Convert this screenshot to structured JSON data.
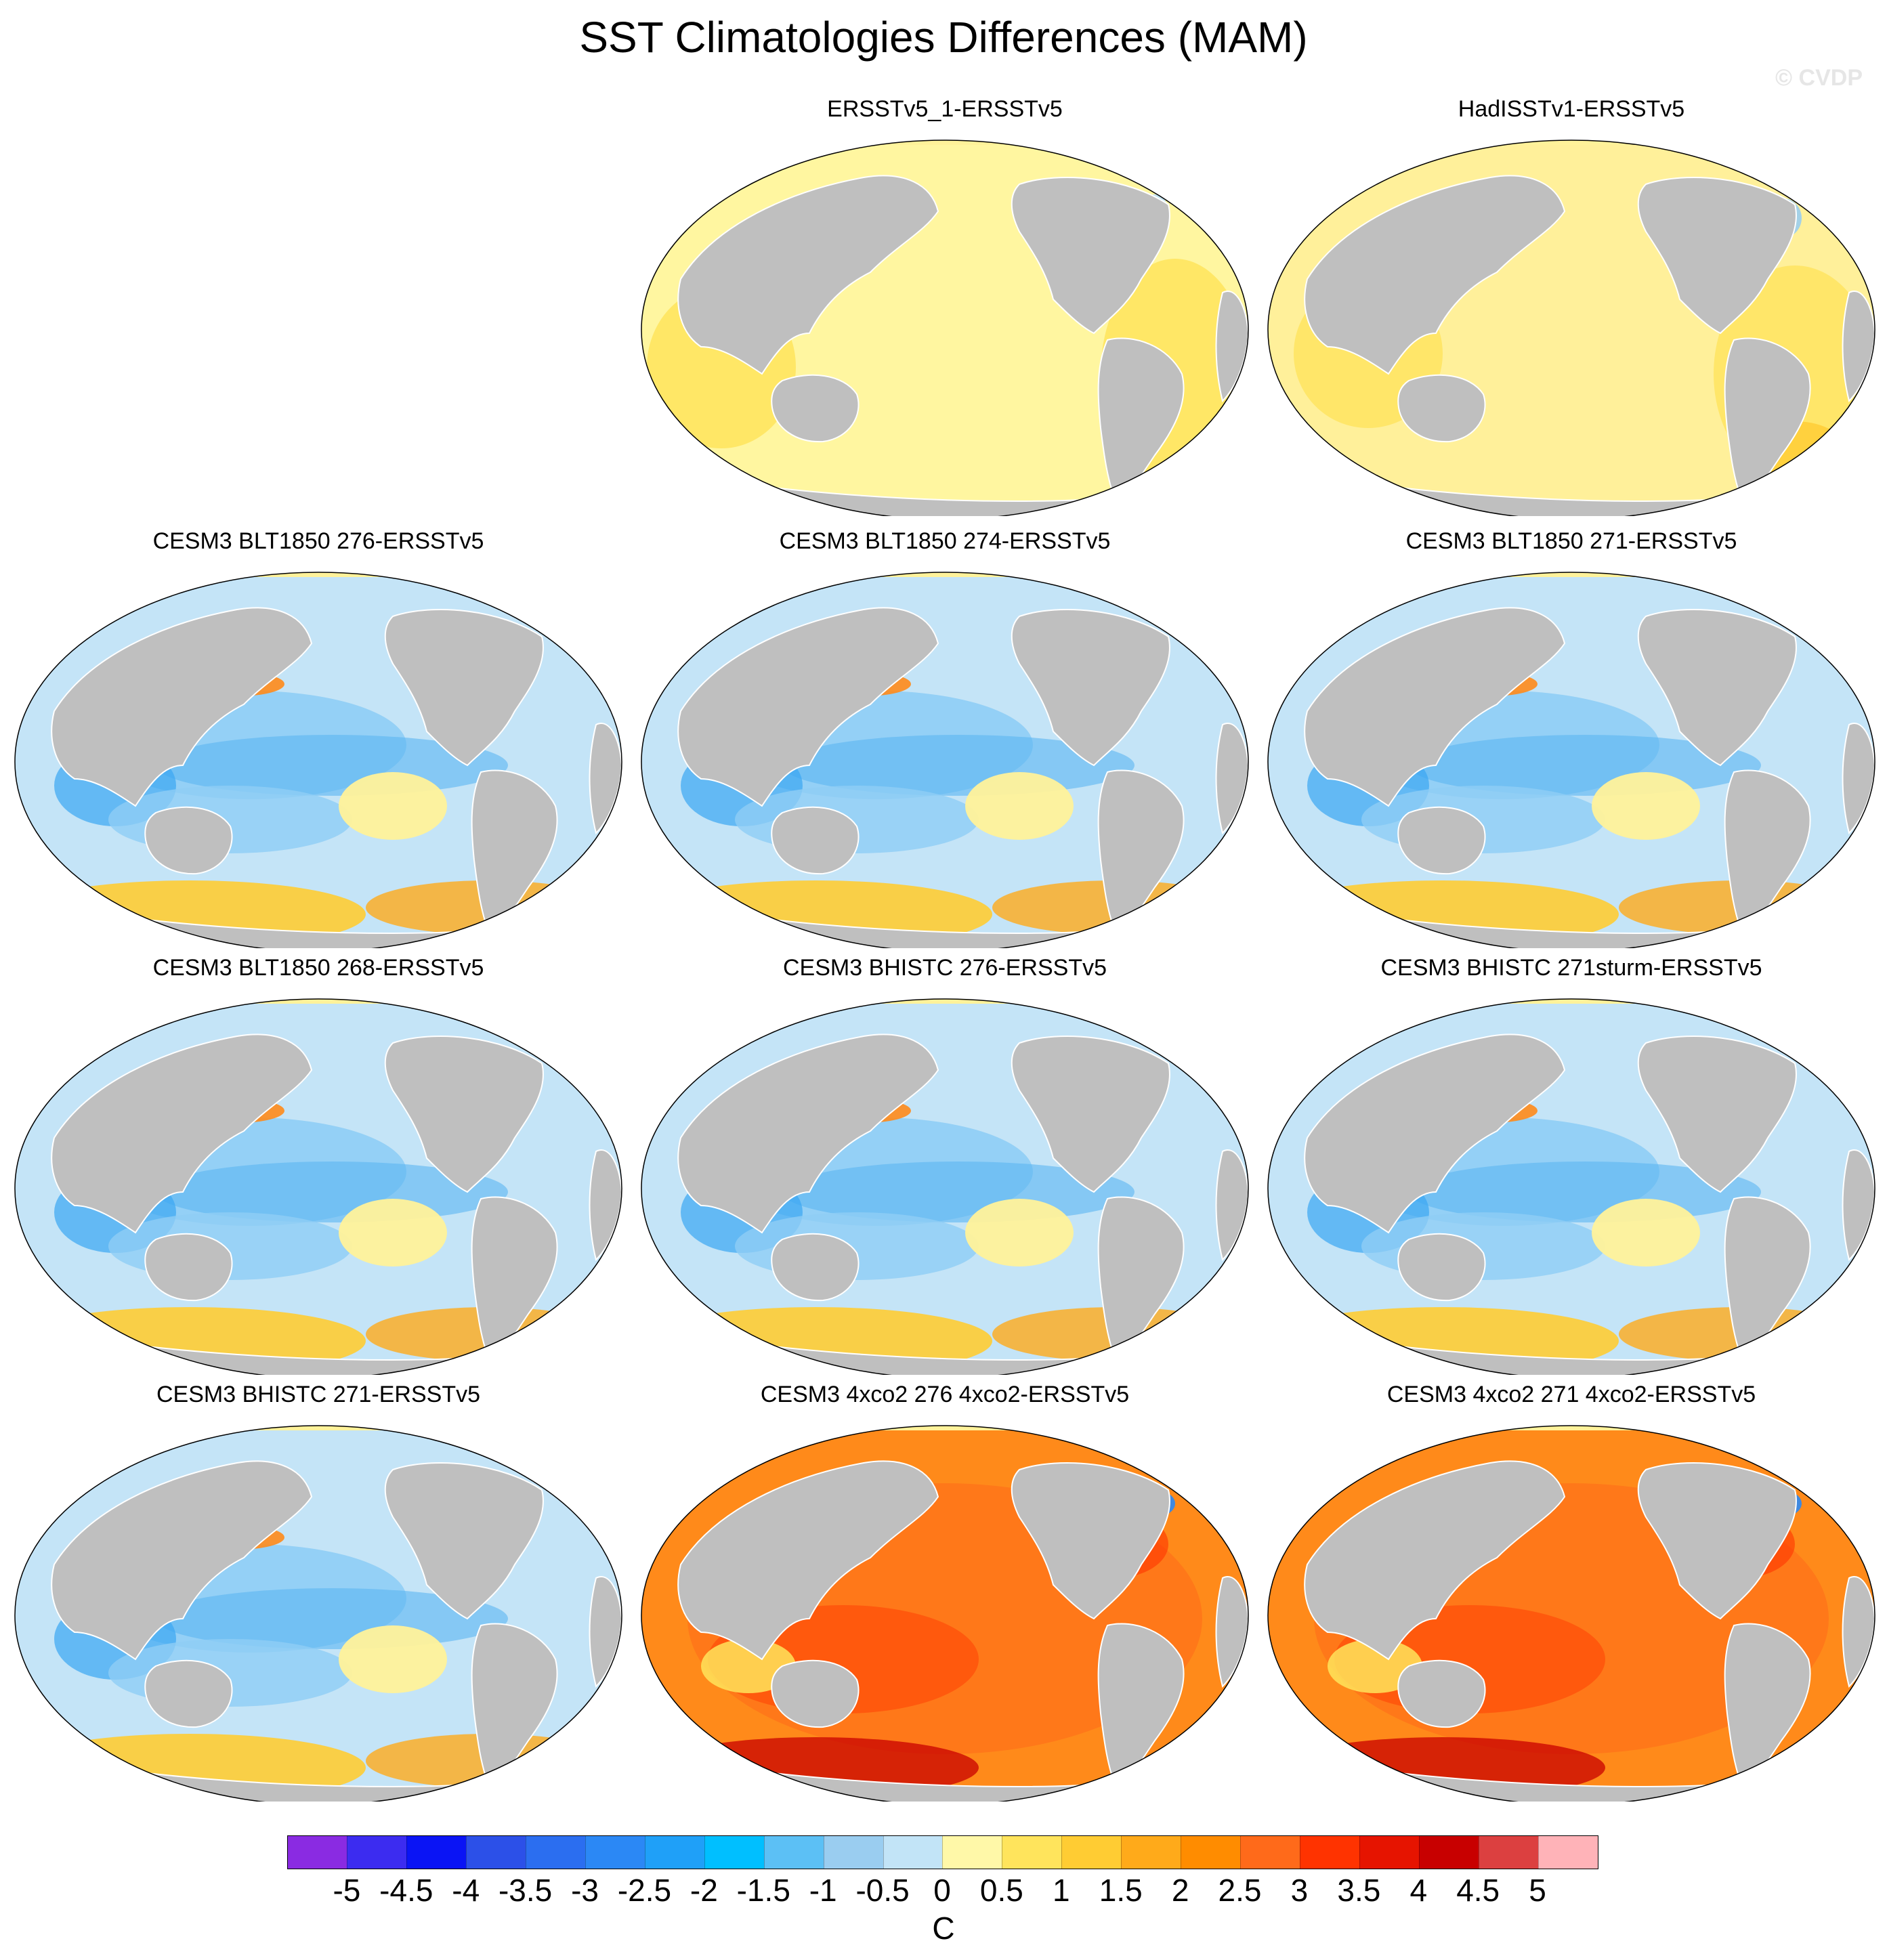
{
  "title": "SST Climatologies Differences (MAM)",
  "watermark": "© CVDP",
  "panels": [
    {
      "label": "ERSSTv5_1-ERSSTv5",
      "scheme": "obs1"
    },
    {
      "label": "HadISSTv1-ERSSTv5",
      "scheme": "obs2"
    },
    {
      "label": "CESM3 BLT1850 276-ERSSTv5",
      "scheme": "model"
    },
    {
      "label": "CESM3 BLT1850 274-ERSSTv5",
      "scheme": "model"
    },
    {
      "label": "CESM3 BLT1850 271-ERSSTv5",
      "scheme": "model"
    },
    {
      "label": "CESM3 BLT1850 268-ERSSTv5",
      "scheme": "model"
    },
    {
      "label": "CESM3 BHISTC 276-ERSSTv5",
      "scheme": "model"
    },
    {
      "label": "CESM3 BHISTC 271sturm-ERSSTv5",
      "scheme": "model"
    },
    {
      "label": "CESM3 BHISTC 271-ERSSTv5",
      "scheme": "model"
    },
    {
      "label": "CESM3 4xco2 276 4xco2-ERSSTv5",
      "scheme": "warm"
    },
    {
      "label": "CESM3 4xco2 271 4xco2-ERSSTv5",
      "scheme": "warm"
    }
  ],
  "colorbar": {
    "colors": [
      "#8a2be2",
      "#3c2cf0",
      "#0a14f5",
      "#2c50e8",
      "#2b6ef0",
      "#2b88f5",
      "#1fa0f8",
      "#00bfff",
      "#5cc0f5",
      "#9acdf0",
      "#c2e4f7",
      "#fff8a8",
      "#ffe45c",
      "#ffcc33",
      "#ffaa1a",
      "#ff8c00",
      "#ff6a1a",
      "#ff3300",
      "#e61400",
      "#c80000",
      "#dc4040",
      "#ffb3b8"
    ],
    "labels": [
      "-5",
      "-4.5",
      "-4",
      "-3.5",
      "-3",
      "-2.5",
      "-2",
      "-1.5",
      "-1",
      "-0.5",
      "0",
      "0.5",
      "1",
      "1.5",
      "2",
      "2.5",
      "3",
      "3.5",
      "4",
      "4.5",
      "5"
    ],
    "units": "C"
  },
  "land_color": "#bfbfbf",
  "ocean_base": {
    "obs1": "#fff6a0",
    "obs2": "#fff09a",
    "model": "#c4e4f7",
    "warm": "#ff8a1a"
  }
}
